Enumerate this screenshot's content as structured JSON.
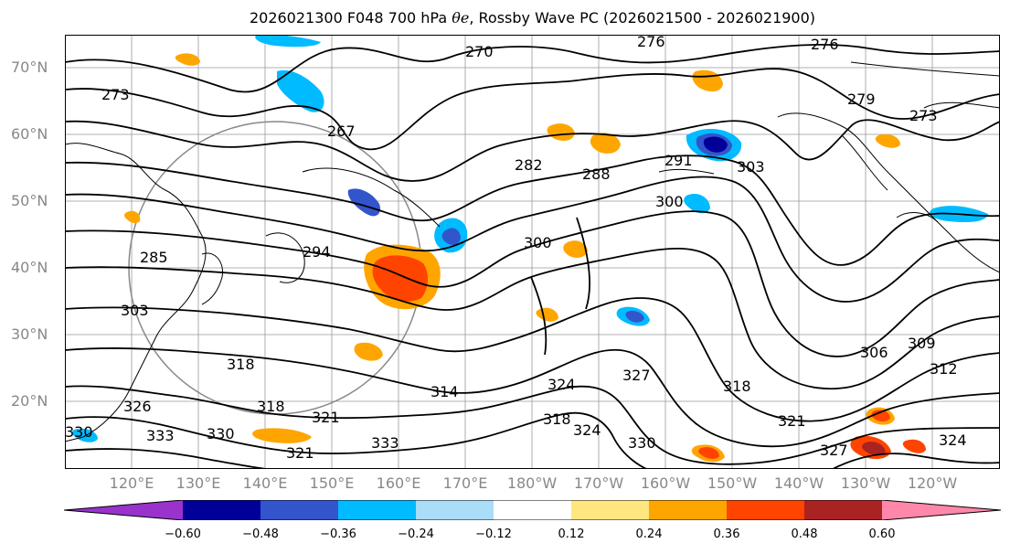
{
  "title": {
    "prefix": "2026021300 F048 700 hPa ",
    "symbol": "θe",
    "suffix": ", Rossby Wave PC (2026021500 - 2026021900)"
  },
  "map": {
    "lat_labels": [
      "70°N",
      "60°N",
      "50°N",
      "40°N",
      "30°N",
      "20°N"
    ],
    "lon_labels": [
      "120°E",
      "130°E",
      "140°E",
      "150°E",
      "160°E",
      "170°E",
      "180°W",
      "170°W",
      "160°W",
      "150°W",
      "140°W",
      "130°W",
      "120°W"
    ],
    "contour_labels": [
      "273",
      "267",
      "276",
      "276",
      "279",
      "273",
      "270",
      "282",
      "288",
      "291",
      "303",
      "300",
      "300",
      "294",
      "285",
      "303",
      "318",
      "318",
      "321",
      "330",
      "333",
      "321",
      "327",
      "324",
      "324",
      "318",
      "327",
      "330",
      "318",
      "306",
      "309",
      "312",
      "321",
      "324",
      "326",
      "330",
      "314",
      "333"
    ],
    "colors": {
      "land_outline": "#000000",
      "contour": "#000000",
      "grid": "#999999",
      "great_circle": "#888888"
    }
  },
  "colorbar": {
    "ticks": [
      "−0.60",
      "−0.48",
      "−0.36",
      "−0.24",
      "−0.12",
      "0.12",
      "0.24",
      "0.36",
      "0.48",
      "0.60"
    ],
    "colors": [
      "#9933cc",
      "#000099",
      "#3355cc",
      "#00bbff",
      "#aaddf7",
      "#ffffff",
      "#ffe680",
      "#ffa500",
      "#ff4400",
      "#aa2222",
      "#ff88aa"
    ]
  }
}
